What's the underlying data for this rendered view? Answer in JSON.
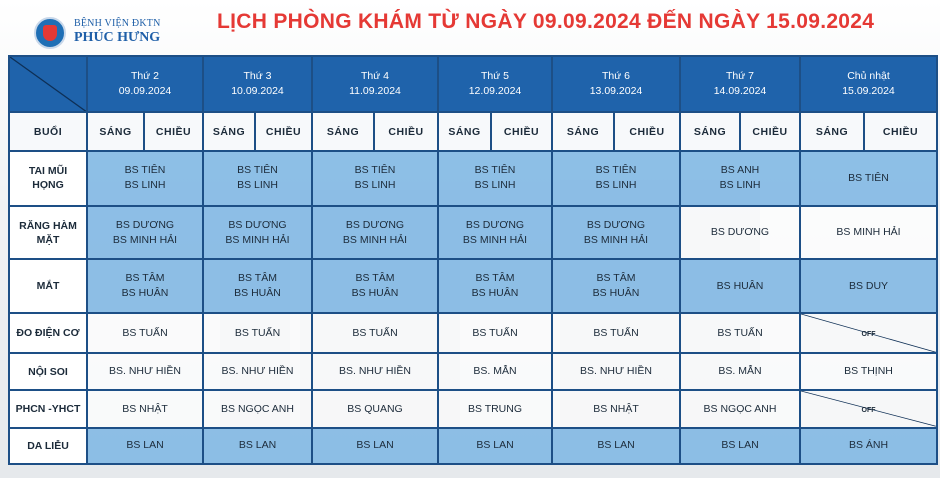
{
  "header": {
    "logo_top": "BỆNH VIỆN ĐKTN",
    "logo_main": "PHÚC HƯNG",
    "title": "LỊCH PHÒNG KHÁM TỪ NGÀY 09.09.2024 ĐẾN NGÀY 15.09.2024"
  },
  "days": [
    {
      "name": "Thứ 2",
      "date": "09.09.2024"
    },
    {
      "name": "Thứ 3",
      "date": "10.09.2024"
    },
    {
      "name": "Thứ 4",
      "date": "11.09.2024"
    },
    {
      "name": "Thứ 5",
      "date": "12.09.2024"
    },
    {
      "name": "Thứ 6",
      "date": "13.09.2024"
    },
    {
      "name": "Thứ 7",
      "date": "14.09.2024"
    },
    {
      "name": "Chủ nhật",
      "date": "15.09.2024"
    }
  ],
  "sub": {
    "buoi": "BUỔI",
    "sang": "SÁNG",
    "chieu": "CHIỀU"
  },
  "rows": [
    {
      "label1": "TAI MŨI",
      "label2": "HỌNG",
      "cells": [
        [
          "BS TIÊN",
          "BS LINH"
        ],
        [
          "BS TIÊN",
          "BS LINH"
        ],
        [
          "BS TIÊN",
          "BS LINH"
        ],
        [
          "BS TIÊN",
          "BS LINH"
        ],
        [
          "BS TIÊN",
          "BS LINH"
        ],
        [
          "BS ANH",
          "BS LINH"
        ],
        [
          "BS TIÊN",
          ""
        ]
      ]
    },
    {
      "label1": "RĂNG HÀM",
      "label2": "MẶT",
      "cells": [
        [
          "BS DƯƠNG",
          "BS MINH HẢI"
        ],
        [
          "BS DƯƠNG",
          "BS MINH HẢI"
        ],
        [
          "BS DƯƠNG",
          "BS MINH HẢI"
        ],
        [
          "BS DƯƠNG",
          "BS MINH HẢI"
        ],
        [
          "BS DƯƠNG",
          "BS MINH HẢI"
        ],
        [
          "BS DƯƠNG",
          ""
        ],
        [
          "BS MINH HẢI",
          ""
        ]
      ]
    },
    {
      "label1": "MẮT",
      "label2": "",
      "cells": [
        [
          "BS TÂM",
          "BS HUÂN"
        ],
        [
          "BS TÂM",
          "BS HUÂN"
        ],
        [
          "BS TÂM",
          "BS HUÂN"
        ],
        [
          "BS TÂM",
          "BS HUÂN"
        ],
        [
          "BS TÂM",
          "BS HUÂN"
        ],
        [
          "BS HUÂN",
          ""
        ],
        [
          "BS DUY",
          ""
        ]
      ]
    },
    {
      "label1": "ĐO ĐIỆN CƠ",
      "label2": "",
      "cells": [
        [
          "BS TUẤN",
          ""
        ],
        [
          "BS TUẤN",
          ""
        ],
        [
          "BS TUẤN",
          ""
        ],
        [
          "BS TUẤN",
          ""
        ],
        [
          "BS TUẤN",
          ""
        ],
        [
          "BS TUẤN",
          ""
        ],
        [
          "OFF",
          ""
        ]
      ]
    },
    {
      "label1": "NỘI SOI",
      "label2": "",
      "cells": [
        [
          "BS. NHƯ HIỀN",
          ""
        ],
        [
          "BS. NHƯ HIỀN",
          ""
        ],
        [
          "BS. NHƯ HIỀN",
          ""
        ],
        [
          "BS. MẪN",
          ""
        ],
        [
          "BS. NHƯ HIỀN",
          ""
        ],
        [
          "BS. MẪN",
          ""
        ],
        [
          "BS THỊNH",
          ""
        ]
      ]
    },
    {
      "label1": "PHCN -YHCT",
      "label2": "",
      "cells": [
        [
          "BS NHẬT",
          ""
        ],
        [
          "BS NGỌC ANH",
          ""
        ],
        [
          "BS QUANG",
          ""
        ],
        [
          "BS TRUNG",
          ""
        ],
        [
          "BS NHẬT",
          ""
        ],
        [
          "BS NGỌC ANH",
          ""
        ],
        [
          "OFF",
          ""
        ]
      ]
    },
    {
      "label1": "DA LIỄU",
      "label2": "",
      "cells": [
        [
          "BS LAN",
          ""
        ],
        [
          "BS LAN",
          ""
        ],
        [
          "BS LAN",
          ""
        ],
        [
          "BS LAN",
          ""
        ],
        [
          "BS LAN",
          ""
        ],
        [
          "BS LAN",
          ""
        ],
        [
          "BS ÁNH",
          ""
        ]
      ]
    }
  ],
  "colors": {
    "title": "#e53935",
    "header_bg": "#1f63ab",
    "cell_shade": "#84bae4",
    "border": "#1d4f86"
  }
}
